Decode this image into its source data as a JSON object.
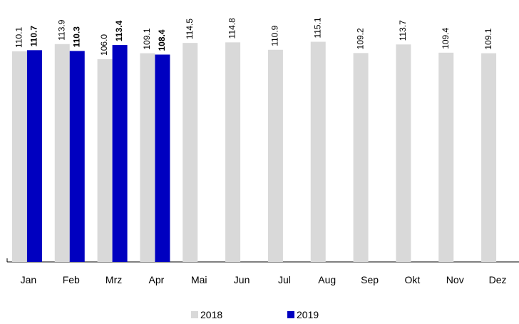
{
  "chart_data": {
    "type": "bar",
    "categories": [
      "Jan",
      "Feb",
      "Mrz",
      "Apr",
      "Mai",
      "Jun",
      "Jul",
      "Aug",
      "Sep",
      "Okt",
      "Nov",
      "Dez"
    ],
    "series": [
      {
        "name": "2018",
        "color": "#d9d9d9",
        "values": [
          110.1,
          113.9,
          106.0,
          109.1,
          114.5,
          114.8,
          110.9,
          115.1,
          109.2,
          113.7,
          109.4,
          109.1
        ],
        "value_labels": [
          "110.1",
          "113.9",
          "106.0",
          "109.1",
          "114.5",
          "114.8",
          "110.9",
          "115.1",
          "109.2",
          "113.7",
          "109.4",
          "109.1"
        ]
      },
      {
        "name": "2019",
        "color": "#0000c0",
        "values": [
          110.7,
          110.3,
          113.4,
          108.4,
          null,
          null,
          null,
          null,
          null,
          null,
          null,
          null
        ],
        "value_labels": [
          "110.7",
          "110.3",
          "113.4",
          "108.4",
          null,
          null,
          null,
          null,
          null,
          null,
          null,
          null
        ]
      }
    ]
  }
}
